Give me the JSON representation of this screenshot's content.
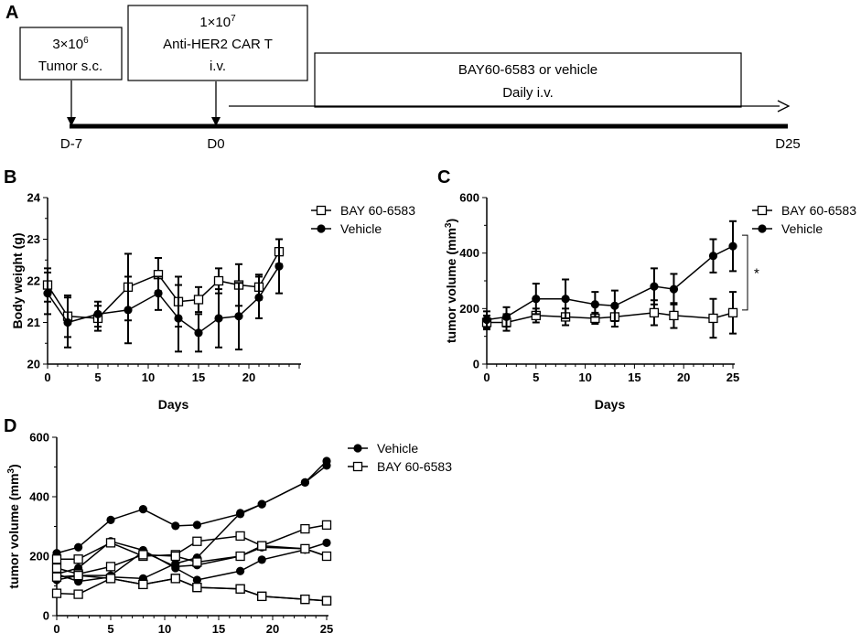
{
  "panel_labels": {
    "a": "A",
    "b": "B",
    "c": "C",
    "d": "D"
  },
  "timeline": {
    "box1": {
      "line1": "3×10",
      "sup1": "6",
      "line2": "Tumor s.c."
    },
    "box2": {
      "line1": "1×10",
      "sup1": "7",
      "line2": "Anti-HER2 CAR T",
      "line3": "i.v."
    },
    "box3": {
      "line1": "BAY60-6583 or vehicle",
      "line2": "Daily i.v."
    },
    "labels": {
      "start": "D-7",
      "mid": "D0",
      "end": "D25"
    }
  },
  "chart_data": [
    {
      "id": "B",
      "type": "line",
      "xlabel": "Days",
      "ylabel": "Body weight (g)",
      "xlim": [
        0,
        25
      ],
      "ylim": [
        20,
        24
      ],
      "xticks": [
        "0",
        "5",
        "10",
        "15",
        "20"
      ],
      "yticks": [
        "20",
        "21",
        "22",
        "23",
        "24"
      ],
      "x": [
        0,
        2,
        5,
        8,
        11,
        13,
        15,
        17,
        19,
        21,
        23
      ],
      "series": [
        {
          "name": "BAY 60-6583",
          "marker": "open-square",
          "values": [
            21.9,
            21.15,
            21.1,
            21.85,
            22.15,
            21.5,
            21.55,
            22.0,
            21.9,
            21.85,
            22.7
          ],
          "err": [
            0.4,
            0.5,
            0.3,
            0.8,
            0.4,
            0.6,
            0.3,
            0.3,
            0.5,
            0.3,
            0.3
          ]
        },
        {
          "name": "Vehicle",
          "marker": "filled-circle",
          "values": [
            21.7,
            21.0,
            21.2,
            21.3,
            21.7,
            21.1,
            20.75,
            21.1,
            21.15,
            21.6,
            22.35
          ],
          "err": [
            0.5,
            0.6,
            0.3,
            0.8,
            0.4,
            0.8,
            0.45,
            0.7,
            0.8,
            0.5,
            0.65
          ]
        }
      ],
      "legend": "top-right"
    },
    {
      "id": "C",
      "type": "line",
      "xlabel": "Days",
      "ylabel": "tumor volume (mm",
      "ylabel_sup": "3",
      "ylabel_end": ")",
      "xlim": [
        0,
        25
      ],
      "ylim": [
        0,
        600
      ],
      "xticks": [
        "0",
        "5",
        "10",
        "15",
        "20",
        "25"
      ],
      "yticks": [
        "0",
        "200",
        "400",
        "600"
      ],
      "x": [
        0,
        2,
        5,
        8,
        11,
        13,
        17,
        19,
        23,
        25
      ],
      "series": [
        {
          "name": "BAY 60-6583",
          "marker": "open-square",
          "values": [
            150,
            150,
            175,
            170,
            165,
            170,
            185,
            175,
            165,
            185
          ],
          "err": [
            25,
            30,
            25,
            30,
            20,
            35,
            45,
            45,
            70,
            75
          ]
        },
        {
          "name": "Vehicle",
          "marker": "filled-circle",
          "values": [
            160,
            170,
            235,
            235,
            215,
            210,
            280,
            270,
            390,
            425
          ],
          "err": [
            30,
            35,
            55,
            70,
            45,
            55,
            65,
            55,
            60,
            90
          ]
        }
      ],
      "annotation": "*",
      "legend": "top-right"
    },
    {
      "id": "D",
      "type": "line",
      "xlabel": "",
      "ylabel": "tumor volume (mm",
      "ylabel_sup": "3",
      "ylabel_end": ")",
      "xlim": [
        0,
        25
      ],
      "ylim": [
        0,
        600
      ],
      "xticks": [
        "0",
        "5",
        "10",
        "15",
        "20",
        "25"
      ],
      "yticks": [
        "0",
        "200",
        "400",
        "600"
      ],
      "x": [
        0,
        2,
        5,
        8,
        11,
        13,
        17,
        19,
        23,
        25
      ],
      "series": [
        {
          "name": "Vehicle",
          "marker": "filled-circle",
          "values": [
            210,
            230,
            322,
            358,
            302,
            305,
            342,
            375,
            448,
            520
          ]
        },
        {
          "name": "Vehicle",
          "marker": "filled-circle",
          "values": [
            140,
            115,
            130,
            125,
            175,
            195,
            345,
            375,
            448,
            505
          ]
        },
        {
          "name": "Vehicle",
          "marker": "filled-circle",
          "values": [
            140,
            160,
            250,
            220,
            160,
            120,
            150,
            188,
            222,
            245
          ]
        },
        {
          "name": "Vehicle",
          "marker": "filled-circle",
          "values": [
            120,
            135,
            135,
            215,
            165,
            170,
            200,
            230,
            225,
            200
          ]
        },
        {
          "name": "BAY 60-6583",
          "marker": "open-square",
          "values": [
            190,
            190,
            245,
            200,
            205,
            250,
            268,
            235,
            292,
            305
          ]
        },
        {
          "name": "BAY 60-6583",
          "marker": "open-square",
          "values": [
            160,
            140,
            165,
            205,
            200,
            180,
            200,
            235,
            225,
            200
          ]
        },
        {
          "name": "BAY 60-6583",
          "marker": "open-square",
          "values": [
            130,
            135,
            125,
            105,
            125,
            95,
            90,
            65,
            55,
            50
          ]
        },
        {
          "name": "BAY 60-6583",
          "marker": "open-square",
          "values": [
            75,
            72,
            125,
            105,
            125,
            95,
            90,
            65,
            55,
            50
          ]
        }
      ],
      "legend_entries": [
        "Vehicle",
        "BAY 60-6583"
      ],
      "legend": "top-right"
    }
  ]
}
